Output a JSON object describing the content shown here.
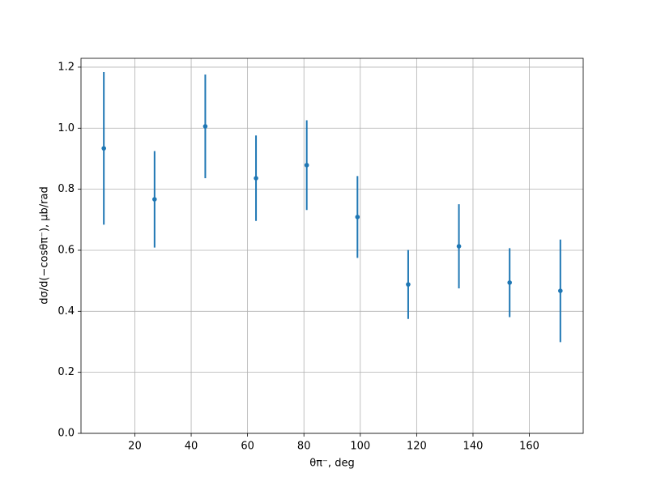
{
  "chart_data": {
    "type": "errorbar",
    "xlabel": "θπ⁻, deg",
    "ylabel": "dσ/d(−cosθπ⁻), μb/rad",
    "x": [
      9,
      27,
      45,
      63,
      81,
      99,
      117,
      135,
      153,
      171
    ],
    "series": [
      {
        "color": "#1f77b4",
        "values": [
          0.934,
          0.767,
          1.006,
          0.836,
          0.879,
          0.709,
          0.488,
          0.613,
          0.494,
          0.467
        ],
        "errors": [
          0.25,
          0.158,
          0.17,
          0.14,
          0.147,
          0.134,
          0.113,
          0.138,
          0.113,
          0.168
        ]
      }
    ],
    "xlim": [
      0.9,
      179.1
    ],
    "ylim": [
      0,
      1.229
    ],
    "xticks": [
      20,
      40,
      60,
      80,
      100,
      120,
      140,
      160
    ],
    "yticks": [
      {
        "value": 0,
        "label": "0.0"
      },
      {
        "value": 0.2,
        "label": "0.2"
      },
      {
        "value": 0.4,
        "label": "0.4"
      },
      {
        "value": 0.6,
        "label": "0.6"
      },
      {
        "value": 0.8,
        "label": "0.8"
      },
      {
        "value": 1.0,
        "label": "1.0"
      },
      {
        "value": 1.2,
        "label": "1.2"
      }
    ],
    "grid": true
  }
}
